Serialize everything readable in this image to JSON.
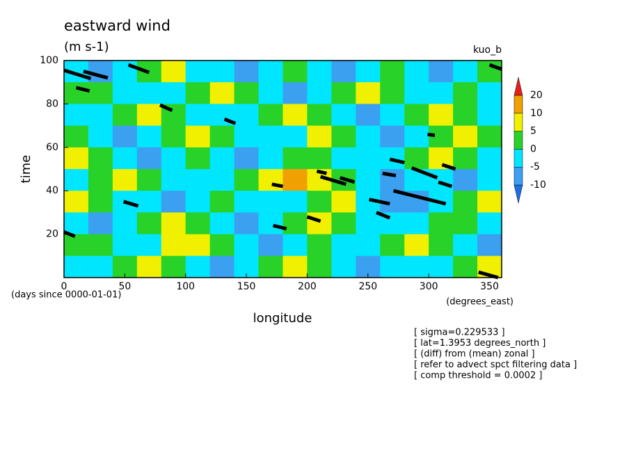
{
  "chart_data": {
    "type": "contour",
    "title": "eastward wind",
    "subtitle": "(m s-1)",
    "run_label": "kuo_b",
    "x_label": "longitude",
    "y_label": "time",
    "x_unit_label": "(degrees_east)",
    "y_unit_label": "(days since 0000-01-01)",
    "xlim": [
      0,
      360
    ],
    "ylim": [
      0,
      100
    ],
    "xticks": [
      0,
      50,
      100,
      150,
      200,
      250,
      300,
      350
    ],
    "yticks": [
      20,
      40,
      60,
      80,
      100
    ],
    "x": [
      10,
      30,
      50,
      70,
      90,
      110,
      130,
      150,
      170,
      190,
      210,
      230,
      250,
      270,
      290,
      310,
      330,
      350
    ],
    "y": [
      95,
      85,
      75,
      65,
      55,
      45,
      35,
      25,
      15,
      5
    ],
    "z": [
      [
        -3,
        -6,
        -4,
        2,
        6,
        -2,
        -5,
        -8,
        -3,
        1,
        -4,
        -7,
        -2,
        3,
        -3,
        -6,
        -1,
        2
      ],
      [
        1,
        4,
        -2,
        -5,
        -3,
        2,
        7,
        3,
        -4,
        -7,
        -3,
        2,
        5,
        1,
        -4,
        -2,
        3,
        -3
      ],
      [
        -4,
        -2,
        3,
        6,
        2,
        -3,
        -5,
        -2,
        4,
        8,
        3,
        -2,
        -6,
        -4,
        2,
        5,
        1,
        -5
      ],
      [
        2,
        -3,
        -7,
        -4,
        1,
        5,
        3,
        -2,
        -5,
        -1,
        6,
        2,
        -3,
        -8,
        -4,
        1,
        6,
        3
      ],
      [
        6,
        3,
        -2,
        -6,
        -3,
        2,
        -2,
        -6,
        -3,
        2,
        4,
        -1,
        -4,
        -2,
        3,
        7,
        2,
        -3
      ],
      [
        -3,
        2,
        7,
        4,
        -1,
        -5,
        -3,
        3,
        8,
        11,
        6,
        1,
        -3,
        -6,
        -2,
        -4,
        -7,
        -2
      ],
      [
        7,
        3,
        -2,
        -5,
        -8,
        -3,
        2,
        -1,
        -5,
        -3,
        2,
        5,
        -2,
        -6,
        -9,
        -4,
        1,
        6
      ],
      [
        -2,
        -6,
        -3,
        3,
        6,
        2,
        -4,
        -7,
        -3,
        4,
        9,
        3,
        -2,
        -5,
        -1,
        4,
        2,
        -3
      ],
      [
        4,
        1,
        -4,
        -2,
        5,
        8,
        3,
        -3,
        -6,
        -2,
        3,
        -2,
        -5,
        2,
        6,
        3,
        -2,
        -6
      ],
      [
        -5,
        -2,
        3,
        6,
        2,
        -3,
        -6,
        -3,
        2,
        5,
        1,
        -4,
        -7,
        -3,
        -1,
        -5,
        2,
        8
      ]
    ],
    "colorbar": {
      "levels": [
        -10,
        -5,
        0,
        5,
        10,
        20
      ],
      "colors": [
        "#1e6ee6",
        "#3ca0f0",
        "#00e6ff",
        "#28d228",
        "#f0f000",
        "#f0a000",
        "#e61e1e"
      ]
    },
    "segment_color": "#000000",
    "segments": [
      {
        "x": [
          0,
          22
        ],
        "y": [
          95.5,
          91.7
        ]
      },
      {
        "x": [
          16,
          36
        ],
        "y": [
          95,
          92
        ]
      },
      {
        "x": [
          53,
          70
        ],
        "y": [
          98,
          94.5
        ]
      },
      {
        "x": [
          10,
          21
        ],
        "y": [
          87.5,
          86
        ]
      },
      {
        "x": [
          79,
          89
        ],
        "y": [
          79.5,
          77
        ]
      },
      {
        "x": [
          132,
          141
        ],
        "y": [
          73,
          71
        ]
      },
      {
        "x": [
          208,
          216
        ],
        "y": [
          49,
          48
        ]
      },
      {
        "x": [
          211,
          232
        ],
        "y": [
          46.5,
          43
        ]
      },
      {
        "x": [
          227,
          239
        ],
        "y": [
          46,
          44
        ]
      },
      {
        "x": [
          171,
          180
        ],
        "y": [
          43,
          42
        ]
      },
      {
        "x": [
          49,
          61
        ],
        "y": [
          35,
          33
        ]
      },
      {
        "x": [
          251,
          268
        ],
        "y": [
          36,
          34
        ]
      },
      {
        "x": [
          257,
          268
        ],
        "y": [
          30,
          27.5
        ]
      },
      {
        "x": [
          271,
          314
        ],
        "y": [
          40,
          34
        ]
      },
      {
        "x": [
          286,
          307
        ],
        "y": [
          50.5,
          46
        ]
      },
      {
        "x": [
          268,
          280
        ],
        "y": [
          54.5,
          53
        ]
      },
      {
        "x": [
          262,
          273
        ],
        "y": [
          48,
          47
        ]
      },
      {
        "x": [
          311,
          322
        ],
        "y": [
          52,
          50
        ]
      },
      {
        "x": [
          308,
          319
        ],
        "y": [
          44,
          42
        ]
      },
      {
        "x": [
          299,
          305
        ],
        "y": [
          66,
          65.5
        ]
      },
      {
        "x": [
          172,
          183
        ],
        "y": [
          24,
          22.5
        ]
      },
      {
        "x": [
          200,
          211
        ],
        "y": [
          28,
          26
        ]
      },
      {
        "x": [
          0,
          9
        ],
        "y": [
          21,
          19
        ]
      },
      {
        "x": [
          341,
          357
        ],
        "y": [
          2.5,
          0
        ]
      },
      {
        "x": [
          350,
          360
        ],
        "y": [
          98,
          96
        ]
      }
    ],
    "notes": [
      "[ sigma=0.229533 ]",
      "[ lat=1.3953 degrees_north ]",
      "[ (diff) from (mean) zonal ]",
      "[ refer to advect spct filtering data ]",
      "[ comp threshold = 0.0002 ]"
    ]
  }
}
